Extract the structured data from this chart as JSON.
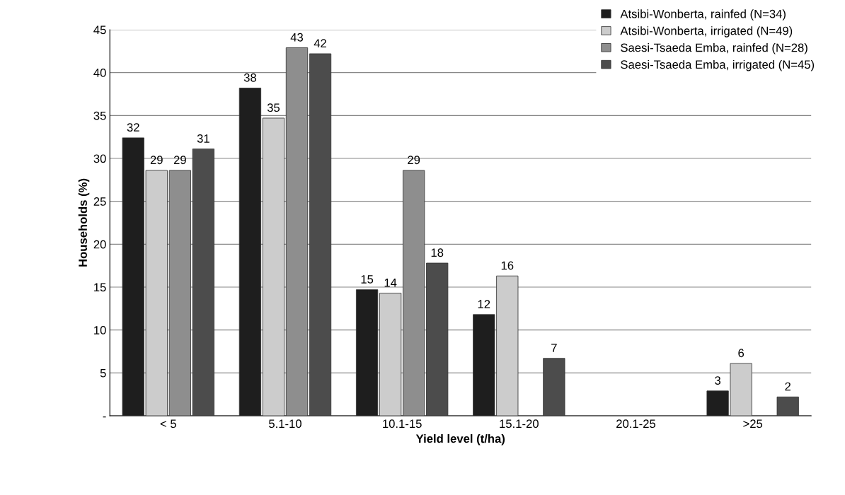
{
  "chart_data": {
    "type": "bar",
    "xlabel": "Yield level (t/ha)",
    "ylabel": "Households (%)",
    "categories": [
      "< 5",
      "5.1-10",
      "10.1-15",
      "15.1-20",
      "20.1-25",
      ">25"
    ],
    "series": [
      {
        "name": "Atsibi-Wonberta, rainfed (N=34)",
        "color": "#1e1e1e",
        "values": [
          32.4,
          38.2,
          14.7,
          11.8,
          null,
          2.9
        ],
        "value_labels": [
          "32",
          "38",
          "15",
          "12",
          null,
          "3"
        ]
      },
      {
        "name": "Atsibi-Wonberta, irrigated (N=49)",
        "color": "#cccccc",
        "values": [
          28.6,
          34.7,
          14.3,
          16.3,
          null,
          6.1
        ],
        "value_labels": [
          "29",
          "35",
          "14",
          "16",
          null,
          "6"
        ]
      },
      {
        "name": "Saesi-Tsaeda Emba, rainfed (N=28)",
        "color": "#8e8e8e",
        "values": [
          28.6,
          42.9,
          28.6,
          null,
          null,
          null
        ],
        "value_labels": [
          "29",
          "43",
          "29",
          null,
          null,
          null
        ]
      },
      {
        "name": "Saesi-Tsaeda Emba, irrigated (N=45)",
        "color": "#4c4c4c",
        "values": [
          31.1,
          42.2,
          17.8,
          6.7,
          null,
          2.2
        ],
        "value_labels": [
          "31",
          "42",
          "18",
          "7",
          null,
          "2"
        ]
      }
    ],
    "ylim": [
      0,
      45
    ],
    "yticks": [
      {
        "value": 0,
        "label": "-"
      },
      5,
      10,
      15,
      20,
      25,
      30,
      35,
      40,
      45
    ],
    "grid": "y",
    "legend": "top right"
  }
}
